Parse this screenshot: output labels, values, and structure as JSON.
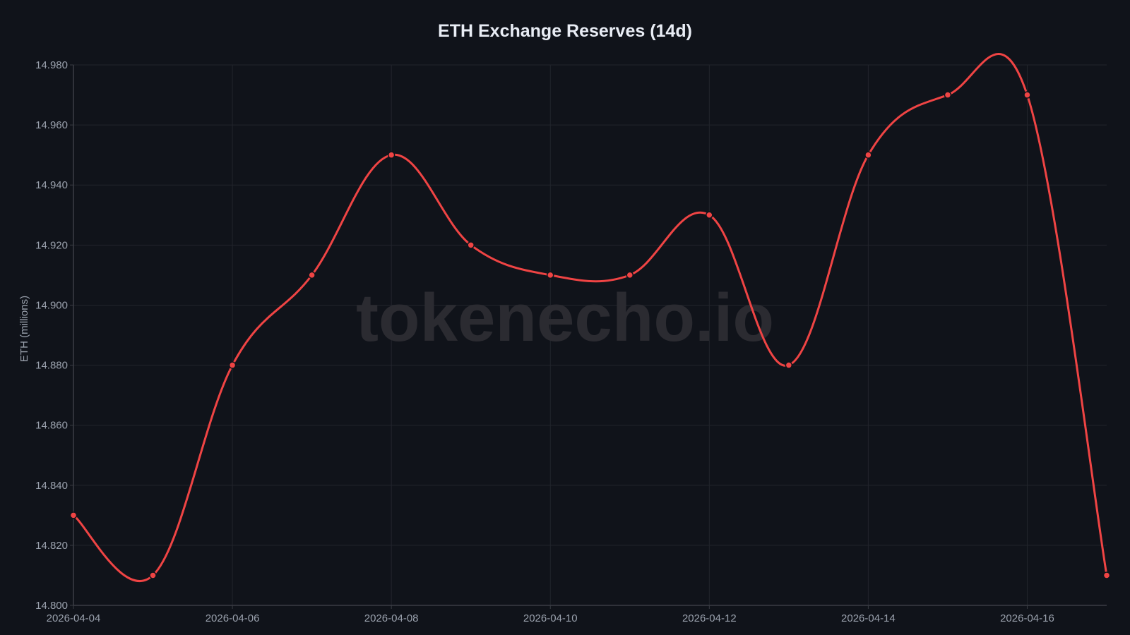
{
  "chart_data": {
    "type": "line",
    "title": "ETH Exchange Reserves (14d)",
    "xlabel": "",
    "ylabel": "ETH (millions)",
    "x": [
      "2026-04-04",
      "2026-04-05",
      "2026-04-06",
      "2026-04-07",
      "2026-04-08",
      "2026-04-09",
      "2026-04-10",
      "2026-04-11",
      "2026-04-12",
      "2026-04-13",
      "2026-04-14",
      "2026-04-15",
      "2026-04-16",
      "2026-04-17"
    ],
    "series": [
      {
        "name": "ETH Exchange Reserves",
        "color": "#ef4444",
        "values": [
          14.83,
          14.81,
          14.88,
          14.91,
          14.95,
          14.92,
          14.91,
          14.91,
          14.93,
          14.88,
          14.95,
          14.97,
          14.97,
          14.81
        ]
      }
    ],
    "ylim": [
      14.8,
      14.98
    ],
    "yticks": [
      "14.800",
      "14.820",
      "14.840",
      "14.860",
      "14.880",
      "14.900",
      "14.920",
      "14.940",
      "14.960",
      "14.980"
    ],
    "xticks": [
      "2026-04-04",
      "2026-04-06",
      "2026-04-08",
      "2026-04-10",
      "2026-04-12",
      "2026-04-14",
      "2026-04-16"
    ],
    "grid": true,
    "legend": "none",
    "watermark": "tokenecho.io"
  },
  "colors": {
    "background": "#10131a",
    "grid": "#22252c",
    "axis": "#3a3d44",
    "tick_text": "#9aa1ad",
    "line": "#ef4444",
    "watermark": "#2b2b31"
  }
}
